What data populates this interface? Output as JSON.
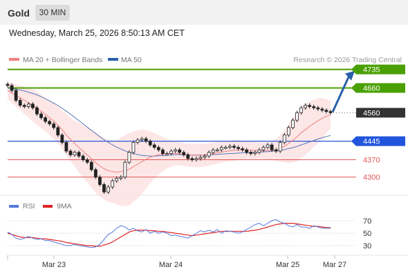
{
  "header": {
    "asset": "Gold",
    "timeframe": "30 MIN",
    "datetime": "Wednesday, March 25, 2026 8:50:13 AM CET"
  },
  "legend": {
    "ma20": "MA 20 + Bollinger Bands",
    "ma50": "MA 50",
    "copyright": "Research © 2026 Trading Central"
  },
  "colors": {
    "resistance": "#4aa000",
    "pivot": "#2255dd",
    "support": "#e05555",
    "last": "#333333",
    "ma20": "#f08080",
    "ma50": "#5577bb",
    "band": "#fde0e0",
    "up": "#2a7a2a",
    "down": "#c62828",
    "rsi": "#5577dd",
    "rsi_ma": "#dd2222",
    "arrow": "#2a5fa8"
  },
  "chart_data": [
    {
      "type": "candlestick",
      "ylim": [
        4235,
        4745
      ],
      "levels": [
        {
          "value": 4735,
          "label": "4735",
          "kind": "resistance"
        },
        {
          "value": 4660,
          "label": "4660",
          "kind": "resistance"
        },
        {
          "value": 4560,
          "label": "4560",
          "kind": "last"
        },
        {
          "value": 4445,
          "label": "4445",
          "kind": "pivot"
        },
        {
          "value": 4370,
          "label": "4370",
          "kind": "support"
        },
        {
          "value": 4300,
          "label": "4300",
          "kind": "support"
        }
      ],
      "x_labels": [
        "Mar 23",
        "Mar 24",
        "Mar 25",
        "Mar 27"
      ],
      "close": [
        4670,
        4650,
        4610,
        4590,
        4585,
        4595,
        4580,
        4555,
        4540,
        4525,
        4515,
        4500,
        4470,
        4440,
        4405,
        4390,
        4400,
        4385,
        4370,
        4360,
        4330,
        4300,
        4270,
        4240,
        4260,
        4285,
        4295,
        4300,
        4360,
        4400,
        4440,
        4450,
        4455,
        4445,
        4430,
        4420,
        4410,
        4395,
        4395,
        4405,
        4410,
        4400,
        4390,
        4375,
        4370,
        4375,
        4380,
        4385,
        4400,
        4410,
        4410,
        4420,
        4420,
        4425,
        4420,
        4415,
        4410,
        4400,
        4395,
        4400,
        4410,
        4420,
        4430,
        4410,
        4405,
        4440,
        4470,
        4500,
        4530,
        4560,
        4580,
        4590,
        4585,
        4580,
        4575,
        4570,
        4565,
        4560
      ],
      "ma20": [
        4650,
        4640,
        4630,
        4620,
        4610,
        4600,
        4590,
        4578,
        4566,
        4554,
        4540,
        4527,
        4510,
        4492,
        4470,
        4452,
        4436,
        4420,
        4404,
        4390,
        4374,
        4358,
        4345,
        4334,
        4326,
        4322,
        4320,
        4322,
        4326,
        4332,
        4342,
        4352,
        4362,
        4372,
        4380,
        4386,
        4390,
        4393,
        4395,
        4396,
        4396,
        4394,
        4391,
        4390,
        4388,
        4388,
        4388,
        4390,
        4392,
        4395,
        4398,
        4401,
        4404,
        4406,
        4408,
        4409,
        4410,
        4410,
        4409,
        4408,
        4407,
        4406,
        4407,
        4408,
        4410,
        4416,
        4425,
        4436,
        4449,
        4463,
        4478,
        4492,
        4505,
        4517,
        4528,
        4537,
        4546,
        4552
      ],
      "bb_upper": [
        4685,
        4680,
        4675,
        4670,
        4665,
        4660,
        4655,
        4645,
        4632,
        4620,
        4610,
        4600,
        4585,
        4570,
        4555,
        4540,
        4528,
        4520,
        4510,
        4500,
        4490,
        4480,
        4468,
        4458,
        4452,
        4448,
        4450,
        4460,
        4470,
        4478,
        4484,
        4490,
        4492,
        4490,
        4485,
        4478,
        4470,
        4462,
        4455,
        4450,
        4445,
        4440,
        4438,
        4436,
        4435,
        4435,
        4435,
        4436,
        4438,
        4440,
        4442,
        4444,
        4446,
        4448,
        4450,
        4450,
        4448,
        4446,
        4444,
        4442,
        4440,
        4440,
        4442,
        4446,
        4455,
        4470,
        4490,
        4515,
        4540,
        4562,
        4580,
        4595,
        4605,
        4612,
        4618,
        4620,
        4615,
        4608
      ],
      "bb_lower": [
        4615,
        4600,
        4585,
        4570,
        4555,
        4540,
        4525,
        4510,
        4498,
        4486,
        4470,
        4454,
        4435,
        4414,
        4385,
        4364,
        4344,
        4320,
        4298,
        4280,
        4258,
        4236,
        4222,
        4210,
        4200,
        4196,
        4190,
        4184,
        4182,
        4186,
        4200,
        4214,
        4232,
        4254,
        4275,
        4294,
        4310,
        4324,
        4335,
        4342,
        4347,
        4348,
        4344,
        4344,
        4341,
        4341,
        4341,
        4344,
        4346,
        4350,
        4354,
        4358,
        4362,
        4364,
        4366,
        4368,
        4372,
        4374,
        4374,
        4374,
        4374,
        4372,
        4372,
        4370,
        4365,
        4362,
        4360,
        4357,
        4358,
        4364,
        4376,
        4389,
        4405,
        4422,
        4438,
        4454,
        4477,
        4496
      ],
      "ma50": [
        4660,
        4658,
        4655,
        4652,
        4648,
        4643,
        4638,
        4632,
        4625,
        4617,
        4608,
        4599,
        4589,
        4578,
        4566,
        4554,
        4541,
        4528,
        4515,
        4502,
        4489,
        4476,
        4463,
        4451,
        4440,
        4430,
        4421,
        4413,
        4406,
        4400,
        4395,
        4391,
        4388,
        4386,
        4385,
        4385,
        4386,
        4387,
        4388,
        4390,
        4391,
        4391,
        4390,
        4390,
        4389,
        4389,
        4389,
        4389,
        4390,
        4391,
        4392,
        4393,
        4394,
        4395,
        4396,
        4397,
        4398,
        4399,
        4400,
        4400,
        4401,
        4402,
        4403,
        4404,
        4406,
        4408,
        4411,
        4415,
        4419,
        4424,
        4430,
        4436,
        4442,
        4448,
        4454,
        4459,
        4464,
        4468
      ]
    },
    {
      "type": "line",
      "legend": [
        "RSI",
        "9MA"
      ],
      "ylim": [
        20,
        80
      ],
      "y_ticks": [
        70,
        50,
        30
      ],
      "rsi": [
        52,
        48,
        42,
        40,
        42,
        45,
        42,
        40,
        41,
        38,
        38,
        36,
        34,
        32,
        30,
        30,
        32,
        30,
        29,
        28,
        27,
        28,
        32,
        40,
        48,
        52,
        58,
        62,
        60,
        55,
        58,
        54,
        52,
        56,
        50,
        53,
        50,
        52,
        50,
        46,
        47,
        45,
        44,
        42,
        46,
        50,
        54,
        52,
        55,
        52,
        56,
        50,
        54,
        53,
        52,
        50,
        52,
        56,
        60,
        64,
        66,
        62,
        66,
        70,
        72,
        68,
        66,
        62,
        60,
        64,
        60,
        60,
        58,
        62,
        60,
        58,
        58,
        58
      ],
      "rsi_ma": [
        50,
        48,
        46,
        44,
        43,
        43,
        43,
        42,
        41,
        41,
        40,
        39,
        38,
        37,
        35,
        34,
        33,
        32,
        31,
        30,
        30,
        29,
        29,
        31,
        33,
        36,
        40,
        44,
        48,
        52,
        54,
        55,
        55,
        55,
        54,
        54,
        53,
        53,
        52,
        51,
        50,
        49,
        48,
        47,
        46,
        47,
        48,
        49,
        50,
        51,
        52,
        53,
        53,
        53,
        53,
        53,
        53,
        53,
        54,
        55,
        56,
        58,
        60,
        62,
        64,
        65,
        66,
        66,
        66,
        65,
        64,
        63,
        62,
        61,
        61,
        60,
        59,
        59
      ]
    }
  ]
}
